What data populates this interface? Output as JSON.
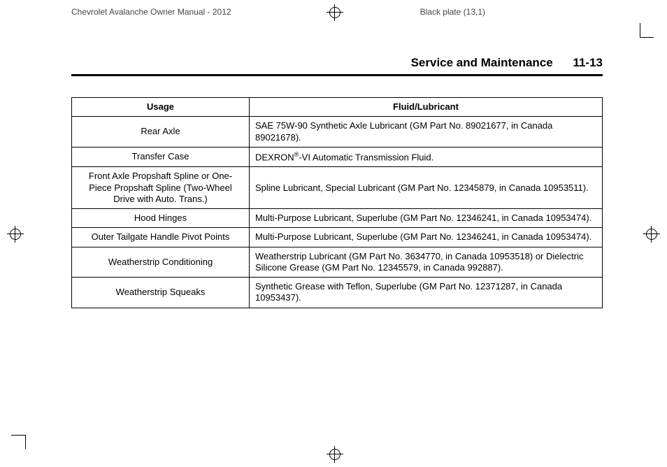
{
  "header": {
    "left": "Chevrolet Avalanche Owner Manual - 2012",
    "right": "Black plate (13,1)"
  },
  "section": {
    "title": "Service and Maintenance",
    "page_number": "11-13"
  },
  "table": {
    "cols": {
      "usage": "Usage",
      "fluid": "Fluid/Lubricant"
    },
    "rows": [
      {
        "usage": "Rear Axle",
        "fluid": "SAE 75W-90 Synthetic Axle Lubricant (GM Part No. 89021677, in Canada 89021678)."
      },
      {
        "usage": "Transfer Case",
        "fluid_prefix": "DEXRON",
        "fluid_sup": "®",
        "fluid_suffix": "-VI Automatic Transmission Fluid."
      },
      {
        "usage": "Front Axle Propshaft Spline or One-Piece Propshaft Spline (Two-Wheel Drive with Auto. Trans.)",
        "fluid": "Spline Lubricant, Special Lubricant (GM Part No. 12345879, in Canada 10953511)."
      },
      {
        "usage": "Hood Hinges",
        "fluid": "Multi-Purpose Lubricant, Superlube (GM Part No. 12346241, in Canada 10953474)."
      },
      {
        "usage": "Outer Tailgate Handle Pivot Points",
        "fluid": "Multi-Purpose Lubricant, Superlube (GM Part No. 12346241, in Canada 10953474)."
      },
      {
        "usage": "Weatherstrip Conditioning",
        "fluid": "Weatherstrip Lubricant (GM Part No. 3634770, in Canada 10953518) or Dielectric Silicone Grease (GM Part No. 12345579, in Canada 992887)."
      },
      {
        "usage": "Weatherstrip Squeaks",
        "fluid": "Synthetic Grease with Teflon, Superlube (GM Part No. 12371287, in Canada 10953437)."
      }
    ]
  }
}
